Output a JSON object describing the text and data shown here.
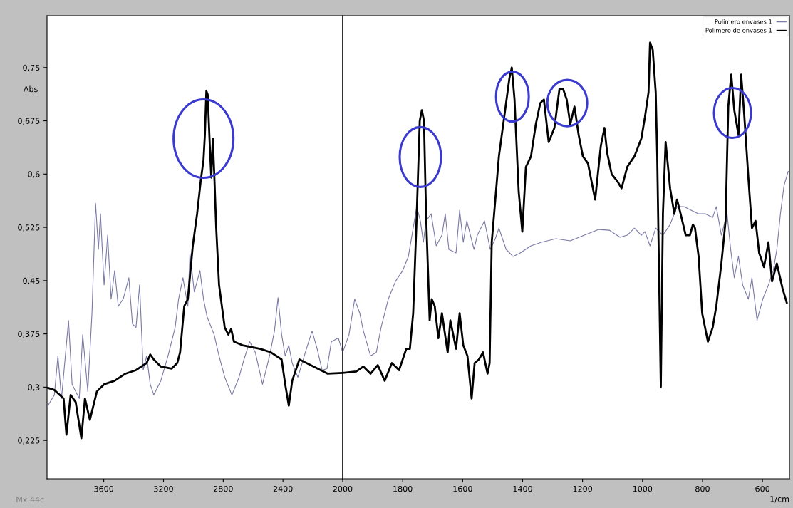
{
  "chart_data": [
    {
      "type": "line",
      "ylabel": "Abs",
      "annotations": [
        "Mx 44c"
      ],
      "tick_labels": true,
      "xlim": [
        3980,
        2000
      ],
      "xticks": [
        3600,
        3200,
        2800,
        2400
      ],
      "ylim": [
        0.171,
        0.823
      ],
      "yticks": [
        {
          "value": 0.225,
          "label": "0,225"
        },
        {
          "value": 0.3,
          "label": "0,3"
        },
        {
          "value": 0.375,
          "label": "0,375"
        },
        {
          "value": 0.45,
          "label": "0,45"
        },
        {
          "value": 0.525,
          "label": "0,525"
        },
        {
          "value": 0.6,
          "label": "0,6"
        },
        {
          "value": 0.675,
          "label": "0,675"
        },
        {
          "value": 0.75,
          "label": "0,75"
        }
      ],
      "marker": "none",
      "series": [
        {
          "color": "#7a7aa6",
          "x": [
            3974,
            3931,
            3907,
            3883,
            3836,
            3812,
            3764,
            3741,
            3707,
            3679,
            3655,
            3636,
            3622,
            3598,
            3574,
            3551,
            3527,
            3503,
            3470,
            3432,
            3408,
            3384,
            3360,
            3336,
            3313,
            3289,
            3265,
            3218,
            3170,
            3122,
            3099,
            3070,
            3037,
            3023,
            2994,
            2956,
            2932,
            2908,
            2861,
            2828,
            2790,
            2742,
            2694,
            2661,
            2623,
            2585,
            2537,
            2490,
            2457,
            2433,
            2409,
            2385,
            2361,
            2338,
            2300,
            2243,
            2205,
            2171,
            2138,
            2105,
            2076,
            2029,
            2000
          ],
          "values": [
            0.274,
            0.289,
            0.344,
            0.284,
            0.394,
            0.304,
            0.284,
            0.374,
            0.294,
            0.404,
            0.559,
            0.494,
            0.544,
            0.444,
            0.514,
            0.424,
            0.464,
            0.414,
            0.424,
            0.454,
            0.389,
            0.384,
            0.444,
            0.324,
            0.344,
            0.304,
            0.289,
            0.309,
            0.344,
            0.384,
            0.424,
            0.454,
            0.414,
            0.489,
            0.434,
            0.464,
            0.424,
            0.399,
            0.374,
            0.344,
            0.314,
            0.289,
            0.314,
            0.339,
            0.364,
            0.349,
            0.304,
            0.344,
            0.379,
            0.426,
            0.374,
            0.344,
            0.359,
            0.334,
            0.314,
            0.354,
            0.379,
            0.354,
            0.324,
            0.326,
            0.364,
            0.369,
            0.349
          ]
        },
        {
          "color": "#000000",
          "x": [
            3974,
            3931,
            3869,
            3850,
            3822,
            3788,
            3750,
            3726,
            3693,
            3646,
            3598,
            3527,
            3455,
            3384,
            3313,
            3289,
            3265,
            3218,
            3146,
            3108,
            3089,
            3061,
            3037,
            3004,
            2975,
            2951,
            2932,
            2923,
            2913,
            2904,
            2889,
            2880,
            2870,
            2861,
            2847,
            2828,
            2790,
            2766,
            2747,
            2728,
            2671,
            2599,
            2552,
            2480,
            2409,
            2385,
            2361,
            2338,
            2290,
            2195,
            2100,
            2000
          ],
          "values": [
            0.299,
            0.296,
            0.284,
            0.233,
            0.289,
            0.279,
            0.228,
            0.284,
            0.254,
            0.294,
            0.304,
            0.309,
            0.319,
            0.324,
            0.334,
            0.346,
            0.339,
            0.329,
            0.326,
            0.334,
            0.349,
            0.414,
            0.424,
            0.499,
            0.544,
            0.59,
            0.62,
            0.655,
            0.717,
            0.712,
            0.635,
            0.595,
            0.65,
            0.605,
            0.524,
            0.444,
            0.384,
            0.374,
            0.382,
            0.364,
            0.359,
            0.356,
            0.354,
            0.349,
            0.339,
            0.304,
            0.274,
            0.309,
            0.339,
            0.329,
            0.319,
            0.32
          ]
        }
      ]
    },
    {
      "type": "line",
      "xlabel": "1/cm",
      "tick_labels": "x",
      "legend": "top right",
      "xlim": [
        2000,
        510
      ],
      "xticks": [
        2000,
        1800,
        1600,
        1400,
        1200,
        1000,
        800,
        600
      ],
      "ylim": [
        0.171,
        0.823
      ],
      "marker": "none",
      "series": [
        {
          "name": "Polimero envases 1",
          "color": "#7a7aa6",
          "x": [
            2000,
            1979,
            1960,
            1943,
            1931,
            1907,
            1888,
            1872,
            1848,
            1824,
            1800,
            1781,
            1769,
            1753,
            1741,
            1731,
            1722,
            1705,
            1688,
            1669,
            1658,
            1646,
            1622,
            1610,
            1598,
            1586,
            1562,
            1551,
            1527,
            1508,
            1491,
            1479,
            1455,
            1432,
            1408,
            1372,
            1337,
            1289,
            1241,
            1194,
            1146,
            1111,
            1075,
            1051,
            1027,
            1004,
            992,
            975,
            956,
            932,
            908,
            885,
            861,
            837,
            813,
            790,
            766,
            754,
            737,
            718,
            706,
            694,
            680,
            666,
            647,
            635,
            618,
            599,
            580,
            564,
            552,
            540,
            528,
            514
          ],
          "values": [
            0.349,
            0.374,
            0.424,
            0.404,
            0.379,
            0.344,
            0.349,
            0.384,
            0.424,
            0.449,
            0.464,
            0.484,
            0.514,
            0.554,
            0.534,
            0.504,
            0.534,
            0.544,
            0.499,
            0.514,
            0.544,
            0.494,
            0.489,
            0.549,
            0.504,
            0.534,
            0.494,
            0.514,
            0.534,
            0.494,
            0.509,
            0.524,
            0.494,
            0.484,
            0.489,
            0.499,
            0.504,
            0.509,
            0.506,
            0.514,
            0.522,
            0.521,
            0.511,
            0.514,
            0.524,
            0.514,
            0.519,
            0.499,
            0.524,
            0.514,
            0.529,
            0.554,
            0.554,
            0.549,
            0.544,
            0.544,
            0.539,
            0.554,
            0.514,
            0.544,
            0.494,
            0.454,
            0.484,
            0.444,
            0.424,
            0.454,
            0.394,
            0.424,
            0.444,
            0.464,
            0.494,
            0.544,
            0.584,
            0.604
          ]
        },
        {
          "name": "Polimero de envases 1",
          "color": "#000000",
          "x": [
            2000,
            1955,
            1931,
            1907,
            1883,
            1860,
            1836,
            1812,
            1788,
            1776,
            1765,
            1753,
            1743,
            1736,
            1729,
            1722,
            1710,
            1703,
            1693,
            1681,
            1669,
            1650,
            1641,
            1622,
            1610,
            1598,
            1584,
            1570,
            1560,
            1546,
            1532,
            1517,
            1510,
            1503,
            1491,
            1479,
            1444,
            1436,
            1427,
            1413,
            1401,
            1389,
            1372,
            1356,
            1341,
            1329,
            1313,
            1294,
            1277,
            1265,
            1253,
            1241,
            1227,
            1213,
            1199,
            1182,
            1158,
            1139,
            1127,
            1118,
            1103,
            1084,
            1070,
            1051,
            1027,
            1004,
            992,
            980,
            975,
            966,
            956,
            951,
            944,
            939,
            932,
            923,
            908,
            894,
            885,
            873,
            856,
            842,
            832,
            825,
            813,
            801,
            782,
            766,
            754,
            737,
            723,
            714,
            704,
            694,
            680,
            671,
            661,
            647,
            635,
            623,
            611,
            595,
            580,
            568,
            552,
            533,
            519
          ],
          "values": [
            0.32,
            0.322,
            0.329,
            0.319,
            0.331,
            0.309,
            0.334,
            0.324,
            0.354,
            0.354,
            0.404,
            0.544,
            0.675,
            0.69,
            0.675,
            0.544,
            0.394,
            0.424,
            0.414,
            0.369,
            0.404,
            0.349,
            0.394,
            0.354,
            0.404,
            0.359,
            0.344,
            0.284,
            0.334,
            0.339,
            0.349,
            0.319,
            0.334,
            0.504,
            0.564,
            0.625,
            0.735,
            0.75,
            0.705,
            0.575,
            0.519,
            0.61,
            0.625,
            0.67,
            0.7,
            0.705,
            0.645,
            0.665,
            0.72,
            0.72,
            0.705,
            0.67,
            0.695,
            0.655,
            0.625,
            0.615,
            0.564,
            0.64,
            0.665,
            0.63,
            0.6,
            0.59,
            0.58,
            0.61,
            0.625,
            0.65,
            0.68,
            0.715,
            0.785,
            0.775,
            0.715,
            0.625,
            0.436,
            0.3,
            0.544,
            0.645,
            0.58,
            0.544,
            0.564,
            0.544,
            0.514,
            0.514,
            0.529,
            0.524,
            0.484,
            0.404,
            0.364,
            0.384,
            0.414,
            0.474,
            0.534,
            0.695,
            0.74,
            0.69,
            0.655,
            0.74,
            0.685,
            0.595,
            0.524,
            0.534,
            0.489,
            0.469,
            0.504,
            0.449,
            0.474,
            0.439,
            0.419
          ]
        }
      ]
    }
  ]
}
